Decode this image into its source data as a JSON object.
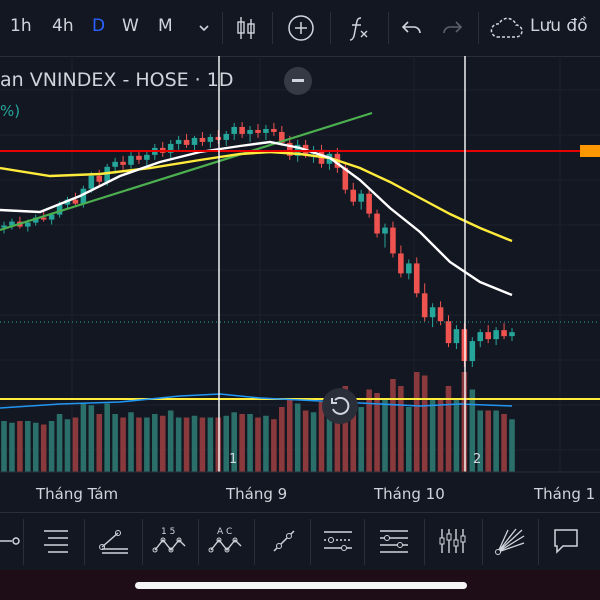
{
  "toolbar": {
    "timeframes": [
      {
        "label": "1h",
        "active": false
      },
      {
        "label": "4h",
        "active": false
      },
      {
        "label": "D",
        "active": true
      },
      {
        "label": "W",
        "active": false
      },
      {
        "label": "M",
        "active": false
      }
    ],
    "icons": [
      "chevron-down-icon",
      "candlestick-icon",
      "add-indicator-icon",
      "function-icon",
      "undo-icon",
      "redo-icon",
      "cloud-icon"
    ],
    "save_label": "Lưu đồ"
  },
  "legend": {
    "title": "an VNINDEX - HOSE · 1D",
    "pct": "%)"
  },
  "chart_data": {
    "type": "candlestick",
    "x_axis_labels": [
      "Tháng Tám",
      "Tháng 9",
      "Tháng 10",
      "Tháng 1"
    ],
    "event_markers": [
      "1",
      "2"
    ],
    "overlays": [
      "moving-average-fast",
      "moving-average-slow",
      "trendline",
      "horizontal-line"
    ],
    "colors": {
      "up": "#26a69a",
      "down": "#ef5350",
      "vol_up": "#2b6f6a",
      "vol_down": "#8a3a3c",
      "ma_fast": "#ffffff",
      "ma_slow": "#ffeb3b",
      "trendline": "#4caf50",
      "hline_red": "#e60000",
      "hline_yellow": "#ffeb3b",
      "vol_ma": "#2196f3",
      "background": "#131722"
    },
    "candles_ohlc": [
      [
        1180,
        1186,
        1174,
        1182
      ],
      [
        1182,
        1189,
        1178,
        1186
      ],
      [
        1186,
        1191,
        1179,
        1181
      ],
      [
        1181,
        1188,
        1176,
        1185
      ],
      [
        1185,
        1193,
        1182,
        1190
      ],
      [
        1190,
        1196,
        1186,
        1188
      ],
      [
        1188,
        1195,
        1183,
        1193
      ],
      [
        1193,
        1206,
        1190,
        1203
      ],
      [
        1203,
        1211,
        1198,
        1208
      ],
      [
        1208,
        1215,
        1201,
        1204
      ],
      [
        1204,
        1222,
        1200,
        1219
      ],
      [
        1219,
        1236,
        1215,
        1232
      ],
      [
        1232,
        1238,
        1222,
        1226
      ],
      [
        1226,
        1244,
        1222,
        1241
      ],
      [
        1241,
        1250,
        1234,
        1246
      ],
      [
        1246,
        1252,
        1238,
        1243
      ],
      [
        1243,
        1256,
        1239,
        1252
      ],
      [
        1252,
        1258,
        1244,
        1248
      ],
      [
        1248,
        1256,
        1242,
        1253
      ],
      [
        1253,
        1264,
        1248,
        1260
      ],
      [
        1260,
        1266,
        1251,
        1255
      ],
      [
        1255,
        1268,
        1250,
        1264
      ],
      [
        1264,
        1272,
        1258,
        1268
      ],
      [
        1268,
        1274,
        1260,
        1263
      ],
      [
        1263,
        1272,
        1257,
        1270
      ],
      [
        1270,
        1276,
        1262,
        1266
      ],
      [
        1266,
        1274,
        1260,
        1271
      ],
      [
        1271,
        1278,
        1264,
        1268
      ],
      [
        1268,
        1277,
        1262,
        1274
      ],
      [
        1274,
        1285,
        1268,
        1281
      ],
      [
        1281,
        1286,
        1270,
        1274
      ],
      [
        1274,
        1282,
        1266,
        1278
      ],
      [
        1278,
        1284,
        1270,
        1275
      ],
      [
        1275,
        1283,
        1268,
        1279
      ],
      [
        1279,
        1285,
        1272,
        1276
      ],
      [
        1276,
        1282,
        1262,
        1265
      ],
      [
        1265,
        1272,
        1248,
        1252
      ],
      [
        1252,
        1268,
        1246,
        1263
      ],
      [
        1263,
        1268,
        1250,
        1254
      ],
      [
        1254,
        1262,
        1245,
        1258
      ],
      [
        1258,
        1263,
        1240,
        1244
      ],
      [
        1244,
        1258,
        1238,
        1254
      ],
      [
        1254,
        1260,
        1235,
        1240
      ],
      [
        1240,
        1246,
        1214,
        1218
      ],
      [
        1218,
        1225,
        1202,
        1206
      ],
      [
        1206,
        1218,
        1198,
        1214
      ],
      [
        1214,
        1220,
        1190,
        1194
      ],
      [
        1194,
        1198,
        1170,
        1174
      ],
      [
        1174,
        1184,
        1160,
        1180
      ],
      [
        1180,
        1186,
        1150,
        1154
      ],
      [
        1154,
        1162,
        1130,
        1134
      ],
      [
        1134,
        1148,
        1128,
        1144
      ],
      [
        1144,
        1150,
        1110,
        1114
      ],
      [
        1114,
        1124,
        1086,
        1090
      ],
      [
        1090,
        1104,
        1080,
        1100
      ],
      [
        1100,
        1106,
        1082,
        1086
      ],
      [
        1086,
        1092,
        1060,
        1064
      ],
      [
        1064,
        1082,
        1058,
        1078
      ],
      [
        1078,
        1084,
        1040,
        1046
      ],
      [
        1046,
        1070,
        1040,
        1066
      ],
      [
        1066,
        1078,
        1060,
        1075
      ],
      [
        1075,
        1082,
        1064,
        1068
      ],
      [
        1068,
        1080,
        1062,
        1077
      ],
      [
        1077,
        1084,
        1068,
        1071
      ],
      [
        1071,
        1079,
        1066,
        1075
      ]
    ]
  },
  "markers": {
    "m1": "1",
    "m2": "2"
  },
  "drawing_tools": [
    "cursor-line-icon",
    "pitchfork-icon",
    "gann-box-icon",
    "abcd-pattern-icon",
    "xabcd-pattern-icon",
    "trend-line-icon",
    "regression-trend-icon",
    "fib-retracement-icon",
    "volume-profile-icon",
    "fib-fan-icon",
    "callout-icon"
  ],
  "drawing_labels": {
    "pattern1": "1   5",
    "pattern2": "A   C"
  }
}
